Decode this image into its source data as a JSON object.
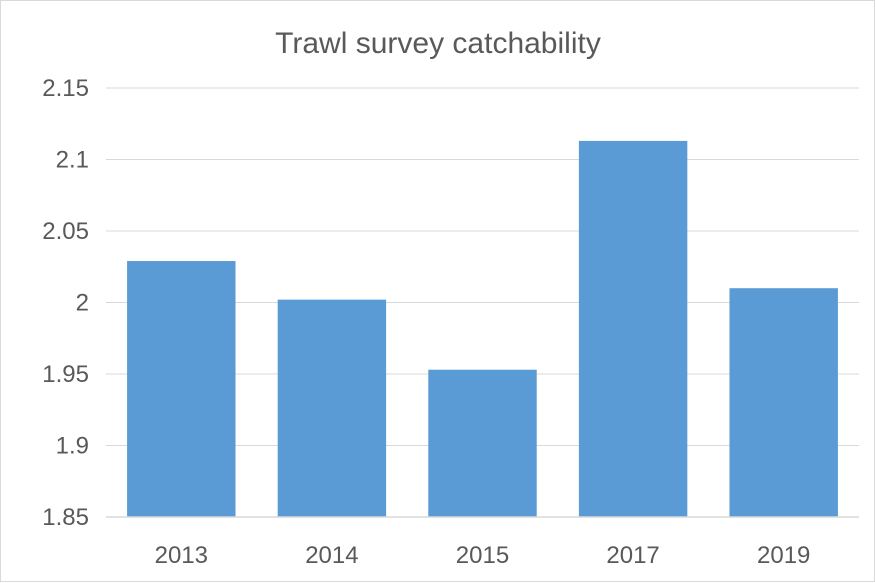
{
  "chart_data": {
    "type": "bar",
    "title": "Trawl survey catchability",
    "categories": [
      "2013",
      "2014",
      "2015",
      "2017",
      "2019"
    ],
    "series": [
      {
        "values": [
          2.029,
          2.002,
          1.953,
          2.113,
          2.01
        ]
      }
    ],
    "xlabel": "",
    "ylabel": "",
    "ylim": [
      1.85,
      2.15
    ],
    "y_ticks": [
      "1.85",
      "1.9",
      "1.95",
      "2",
      "2.05",
      "2.1",
      "2.15"
    ],
    "y_tick_values": [
      1.85,
      1.9,
      1.95,
      2.0,
      2.05,
      2.1,
      2.15
    ],
    "grid": true,
    "legend": "none",
    "bar_color": "#5b9bd5"
  }
}
